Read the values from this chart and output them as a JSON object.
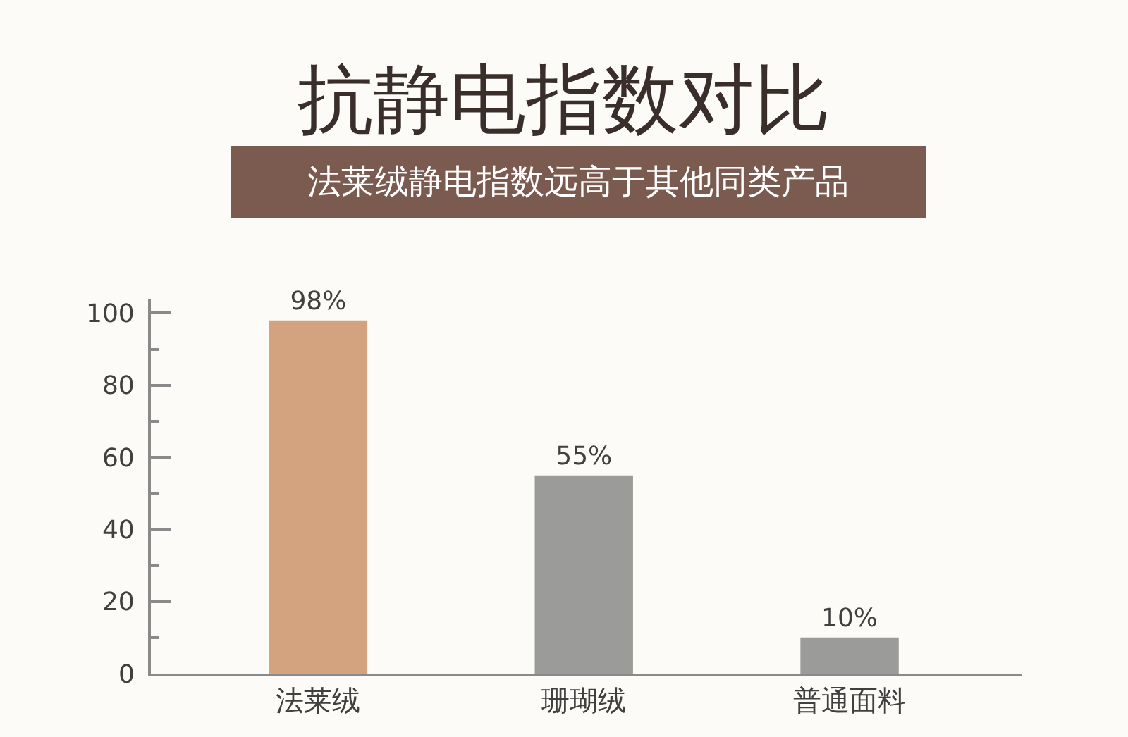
{
  "chart_data": {
    "type": "bar",
    "title": "抗静电指数对比",
    "subtitle": "法莱绒静电指数远高于其他同类产品",
    "categories": [
      "法莱绒",
      "珊瑚绒",
      "普通面料"
    ],
    "values": [
      98,
      55,
      10
    ],
    "colors": [
      "#d3a27f",
      "#9b9b99",
      "#9b9b99"
    ],
    "value_labels": [
      "98%",
      "55%",
      "10%"
    ],
    "ylim": [
      0,
      104
    ],
    "yticks": [
      0,
      {
        "value": 10,
        "label": null
      },
      20,
      {
        "value": 30,
        "label": null
      },
      40,
      {
        "value": 50,
        "label": null
      },
      60,
      {
        "value": 70,
        "label": null
      },
      80,
      {
        "value": 90,
        "label": null
      },
      100
    ]
  }
}
